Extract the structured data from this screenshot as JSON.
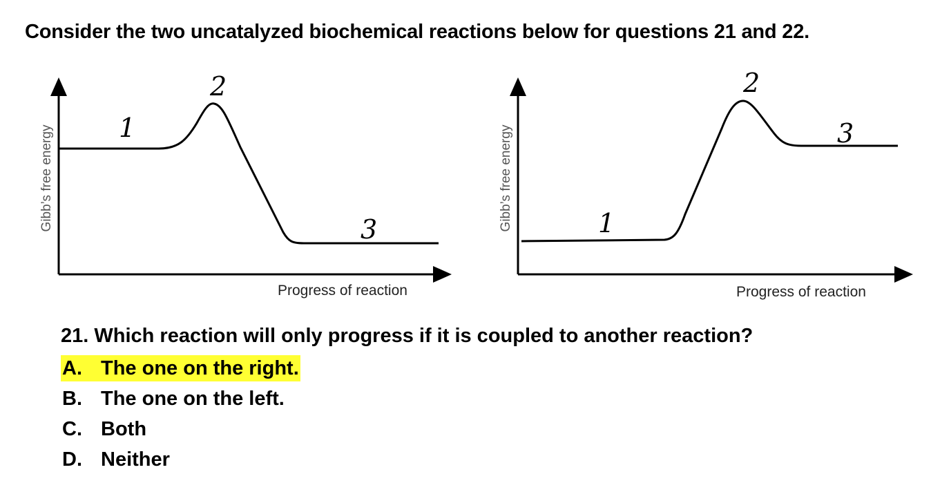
{
  "heading": "Consider the two uncatalyzed biochemical reactions below for questions 21 and 22.",
  "diagrams": [
    {
      "y_label": "Gibb’s free energy",
      "x_label": "Progress of reaction",
      "point_labels": [
        "1",
        "2",
        "3"
      ]
    },
    {
      "y_label": "Gibb’s free energy",
      "x_label": "Progress of reaction",
      "point_labels": [
        "1",
        "2",
        "3"
      ]
    }
  ],
  "question": {
    "text": "21. Which reaction will only progress if it is coupled to another reaction?",
    "options": [
      {
        "letter": "A.",
        "text": "The one on the right.",
        "highlighted": true
      },
      {
        "letter": "B.",
        "text": "The one on the left.",
        "highlighted": false
      },
      {
        "letter": "C.",
        "text": "Both",
        "highlighted": false
      },
      {
        "letter": "D.",
        "text": "Neither",
        "highlighted": false
      }
    ]
  },
  "highlight_color": "#ffff33"
}
